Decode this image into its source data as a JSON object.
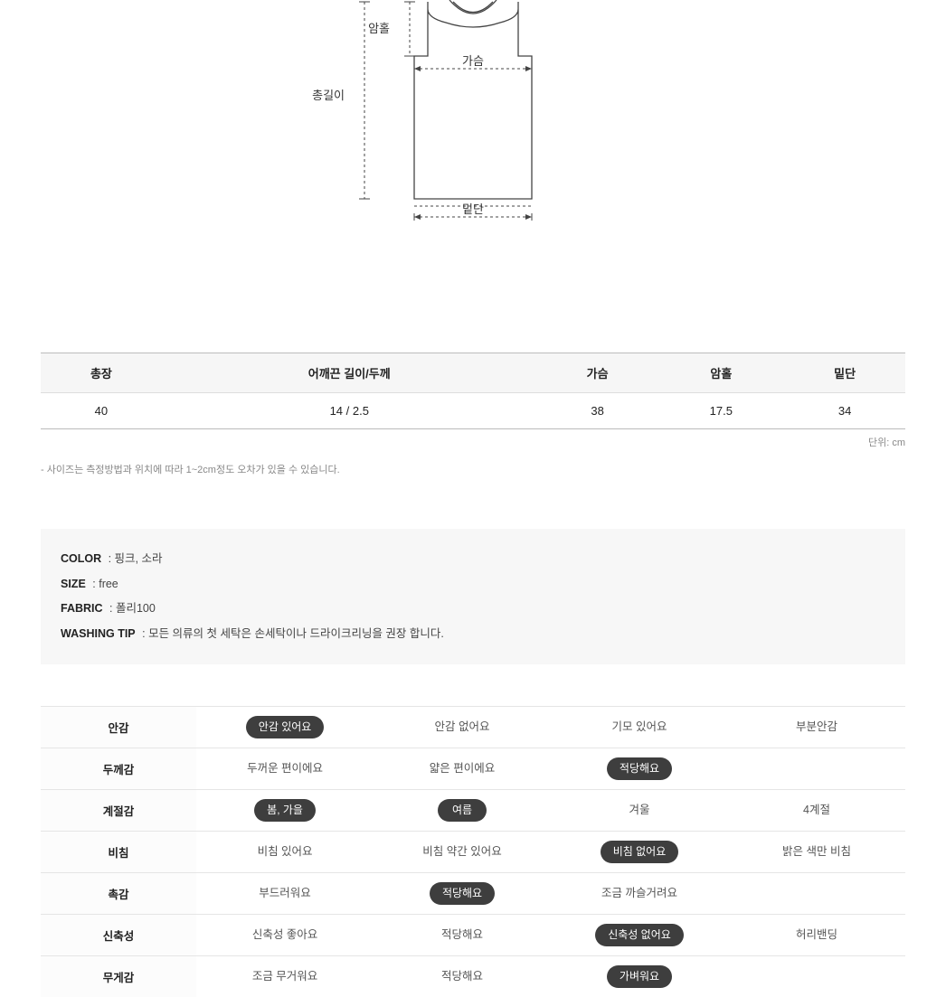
{
  "diagram": {
    "labels": {
      "armhole": "암홀",
      "total_length": "총길이",
      "chest": "가슴",
      "hem": "밑단"
    },
    "stroke": "#444444",
    "dash": "3,3",
    "label_fontsize": 13,
    "label_color": "#333333"
  },
  "size_table": {
    "headers": [
      "총장",
      "어깨끈 길이/두께",
      "가슴",
      "암홀",
      "밑단"
    ],
    "rows": [
      [
        "40",
        "14 / 2.5",
        "38",
        "17.5",
        "34"
      ]
    ],
    "unit_text": "단위: cm",
    "note": "- 사이즈는 측정방법과 위치에 따라 1~2cm정도 오차가 있을 수 있습니다."
  },
  "info": {
    "rows": [
      {
        "label": "COLOR",
        "value": ": 핑크, 소라"
      },
      {
        "label": "SIZE",
        "value": ": free"
      },
      {
        "label": "FABRIC",
        "value": ": 폴리100"
      },
      {
        "label": "WASHING TIP",
        "value": ": 모든 의류의 첫 세탁은 손세탁이나 드라이크리닝을 권장 합니다."
      }
    ]
  },
  "attributes": {
    "rows": [
      {
        "label": "안감",
        "options": [
          {
            "text": "안감 있어요",
            "selected": true
          },
          {
            "text": "안감 없어요",
            "selected": false
          },
          {
            "text": "기모 있어요",
            "selected": false
          },
          {
            "text": "부분안감",
            "selected": false
          }
        ]
      },
      {
        "label": "두께감",
        "options": [
          {
            "text": "두꺼운 편이에요",
            "selected": false
          },
          {
            "text": "얇은 편이에요",
            "selected": false
          },
          {
            "text": "적당해요",
            "selected": true
          },
          {
            "text": "",
            "selected": false
          }
        ]
      },
      {
        "label": "계절감",
        "options": [
          {
            "text": "봄, 가을",
            "selected": true
          },
          {
            "text": "여름",
            "selected": true
          },
          {
            "text": "겨울",
            "selected": false
          },
          {
            "text": "4계절",
            "selected": false
          }
        ]
      },
      {
        "label": "비침",
        "options": [
          {
            "text": "비침 있어요",
            "selected": false
          },
          {
            "text": "비침 약간 있어요",
            "selected": false
          },
          {
            "text": "비침 없어요",
            "selected": true
          },
          {
            "text": "밝은 색만 비침",
            "selected": false
          }
        ]
      },
      {
        "label": "촉감",
        "options": [
          {
            "text": "부드러워요",
            "selected": false
          },
          {
            "text": "적당해요",
            "selected": true
          },
          {
            "text": "조금 까슬거려요",
            "selected": false
          },
          {
            "text": "",
            "selected": false
          }
        ]
      },
      {
        "label": "신축성",
        "options": [
          {
            "text": "신축성 좋아요",
            "selected": false
          },
          {
            "text": "적당해요",
            "selected": false
          },
          {
            "text": "신축성 없어요",
            "selected": true
          },
          {
            "text": "허리밴딩",
            "selected": false
          }
        ]
      },
      {
        "label": "무게감",
        "options": [
          {
            "text": "조금 무거워요",
            "selected": false
          },
          {
            "text": "적당해요",
            "selected": false
          },
          {
            "text": "가벼워요",
            "selected": true
          },
          {
            "text": "",
            "selected": false
          }
        ]
      }
    ]
  }
}
